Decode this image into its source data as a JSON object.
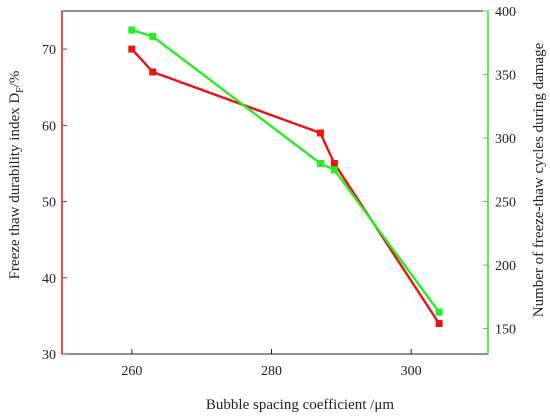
{
  "chart_data": {
    "type": "line",
    "title": "",
    "xlabel": "Bubble spacing coefficient /μm",
    "ylabel_left": "Freeze thaw durability index D",
    "ylabel_left_sub": "F",
    "ylabel_left_unit": "/%",
    "ylabel_right": "Number of freeze-thaw cycles during damage",
    "xlim": [
      250,
      311
    ],
    "ylim_left": [
      30,
      75
    ],
    "ylim_right": [
      130,
      400
    ],
    "x_ticks": [
      260,
      280,
      300
    ],
    "y_left_ticks": [
      30,
      40,
      50,
      60,
      70
    ],
    "y_right_ticks": [
      150,
      200,
      250,
      300,
      350,
      400
    ],
    "grid": false,
    "colors": {
      "left": "#ee1111",
      "right": "#22ee22"
    },
    "series": [
      {
        "axis": "left",
        "color": "#ee1111",
        "x": [
          260,
          263,
          287,
          289,
          304
        ],
        "y": [
          70,
          67,
          59,
          55,
          34
        ]
      },
      {
        "axis": "right",
        "color": "#22ee22",
        "x": [
          260,
          263,
          287,
          289,
          304
        ],
        "y": [
          385,
          380,
          280,
          275,
          163
        ]
      }
    ]
  }
}
